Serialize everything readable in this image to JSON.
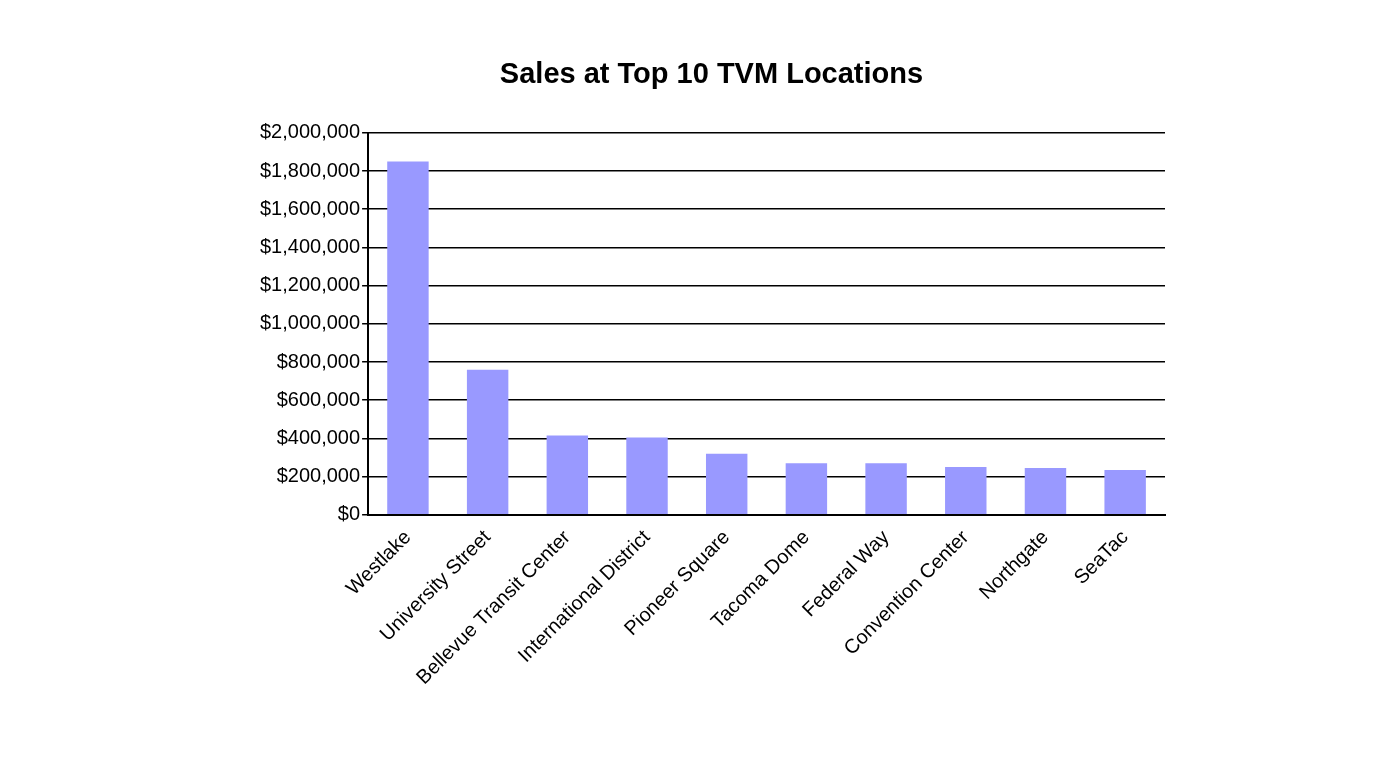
{
  "chart_data": {
    "type": "bar",
    "title": "Sales at Top 10 TVM Locations",
    "categories": [
      "Westlake",
      "University Street",
      "Bellevue Transit Center",
      "International District",
      "Pioneer Square",
      "Tacoma Dome",
      "Federal Way",
      "Convention Center",
      "Northgate",
      "SeaTac"
    ],
    "values": [
      1850000,
      760000,
      415000,
      405000,
      320000,
      270000,
      270000,
      250000,
      245000,
      235000
    ],
    "color": "#9999ff",
    "ylim": [
      0,
      2000000
    ],
    "yticks": [
      {
        "value": 0,
        "label": "$0"
      },
      {
        "value": 200000,
        "label": "$200,000"
      },
      {
        "value": 400000,
        "label": "$400,000"
      },
      {
        "value": 600000,
        "label": "$600,000"
      },
      {
        "value": 800000,
        "label": "$800,000"
      },
      {
        "value": 1000000,
        "label": "$1,000,000"
      },
      {
        "value": 1200000,
        "label": "$1,200,000"
      },
      {
        "value": 1400000,
        "label": "$1,400,000"
      },
      {
        "value": 1600000,
        "label": "$1,600,000"
      },
      {
        "value": 1800000,
        "label": "$1,800,000"
      },
      {
        "value": 2000000,
        "label": "$2,000,000"
      }
    ],
    "grid": "y",
    "legend": false
  }
}
